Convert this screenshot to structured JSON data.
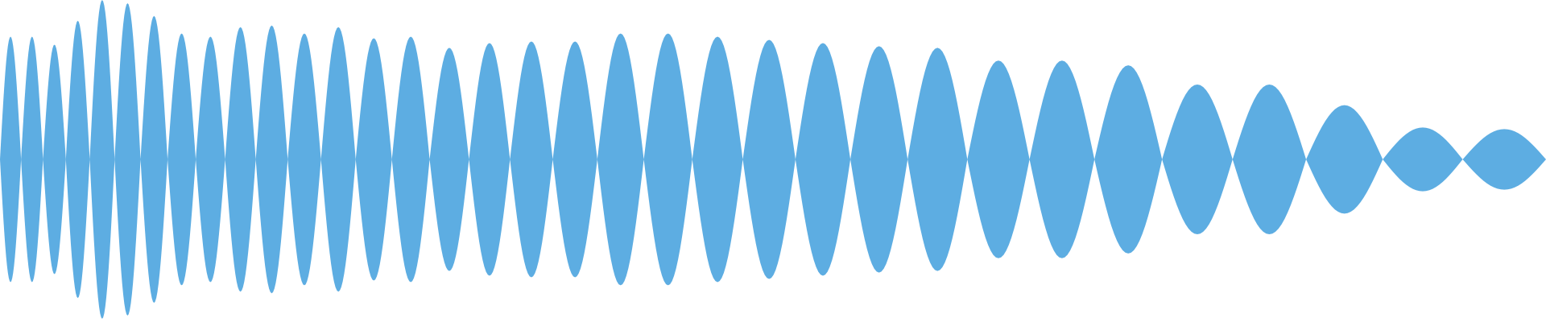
{
  "waveform": {
    "fill_color": "#5dade2",
    "background_color": "#ffffff",
    "lobe_count": 34,
    "amplitudes": [
      0.77,
      0.77,
      0.72,
      0.87,
      1.0,
      0.98,
      0.9,
      0.79,
      0.77,
      0.83,
      0.84,
      0.79,
      0.83,
      0.76,
      0.77,
      0.7,
      0.73,
      0.74,
      0.74,
      0.79,
      0.79,
      0.77,
      0.75,
      0.73,
      0.71,
      0.7,
      0.62,
      0.62,
      0.59,
      0.47,
      0.47,
      0.34,
      0.2,
      0.19
    ]
  }
}
